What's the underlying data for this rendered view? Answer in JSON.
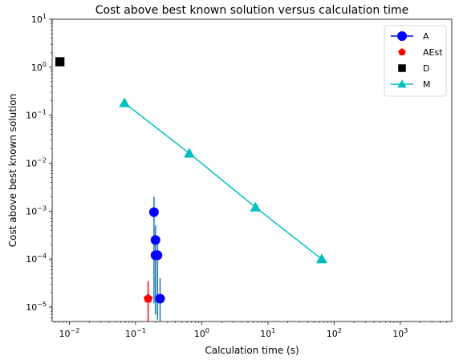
{
  "chart_data": {
    "type": "scatter",
    "title": "Cost above best known solution versus calculation time",
    "xlabel": "Calculation time (s)",
    "ylabel": "Cost above best known solution",
    "xscale": "log",
    "yscale": "log",
    "xlim": [
      0.0055,
      6000
    ],
    "ylim": [
      5e-06,
      10
    ],
    "xticks": [
      {
        "value": 0.01,
        "base": "10",
        "exp": "−2"
      },
      {
        "value": 0.1,
        "base": "10",
        "exp": "−1"
      },
      {
        "value": 1,
        "base": "10",
        "exp": "0"
      },
      {
        "value": 10,
        "base": "10",
        "exp": "1"
      },
      {
        "value": 100,
        "base": "10",
        "exp": "2"
      },
      {
        "value": 1000,
        "base": "10",
        "exp": "3"
      }
    ],
    "yticks": [
      {
        "value": 1e-05,
        "base": "10",
        "exp": "−5"
      },
      {
        "value": 0.0001,
        "base": "10",
        "exp": "−4"
      },
      {
        "value": 0.001,
        "base": "10",
        "exp": "−3"
      },
      {
        "value": 0.01,
        "base": "10",
        "exp": "−2"
      },
      {
        "value": 0.1,
        "base": "10",
        "exp": "−1"
      },
      {
        "value": 1,
        "base": "10",
        "exp": "0"
      },
      {
        "value": 10,
        "base": "10",
        "exp": "1"
      }
    ],
    "legend_position": "top-right",
    "series": [
      {
        "name": "A",
        "color": "#0000ff",
        "marker": "circle",
        "line": false,
        "error_color": "#1f77b4",
        "points": [
          {
            "x": 0.19,
            "y": 0.00095,
            "ylow": 1.2e-05,
            "yhigh": 0.002
          },
          {
            "x": 0.2,
            "y": 0.00025,
            "ylow": 9e-06,
            "yhigh": 0.0005
          },
          {
            "x": 0.2,
            "y": 0.00012,
            "ylow": 7e-06,
            "yhigh": 0.00025
          },
          {
            "x": 0.215,
            "y": 0.00012,
            "ylow": 5.5e-06,
            "yhigh": 0.0002
          },
          {
            "x": 0.235,
            "y": 1.5e-05,
            "ylow": 5e-06,
            "yhigh": 4e-05
          }
        ]
      },
      {
        "name": "AEst",
        "color": "#ff0000",
        "marker": "pentagon",
        "line": false,
        "error_color": "#ff0000",
        "points": [
          {
            "x": 0.155,
            "y": 1.5e-05,
            "ylow": 5e-06,
            "yhigh": 3.5e-05
          }
        ]
      },
      {
        "name": "D",
        "color": "#000000",
        "marker": "square",
        "line": false,
        "points": [
          {
            "x": 0.0072,
            "y": 1.3
          }
        ]
      },
      {
        "name": "M",
        "color": "#00bfbf",
        "marker": "triangle",
        "line": true,
        "points": [
          {
            "x": 0.068,
            "y": 0.18
          },
          {
            "x": 0.65,
            "y": 0.016
          },
          {
            "x": 6.5,
            "y": 0.0012
          },
          {
            "x": 65,
            "y": 0.0001
          }
        ]
      }
    ]
  }
}
